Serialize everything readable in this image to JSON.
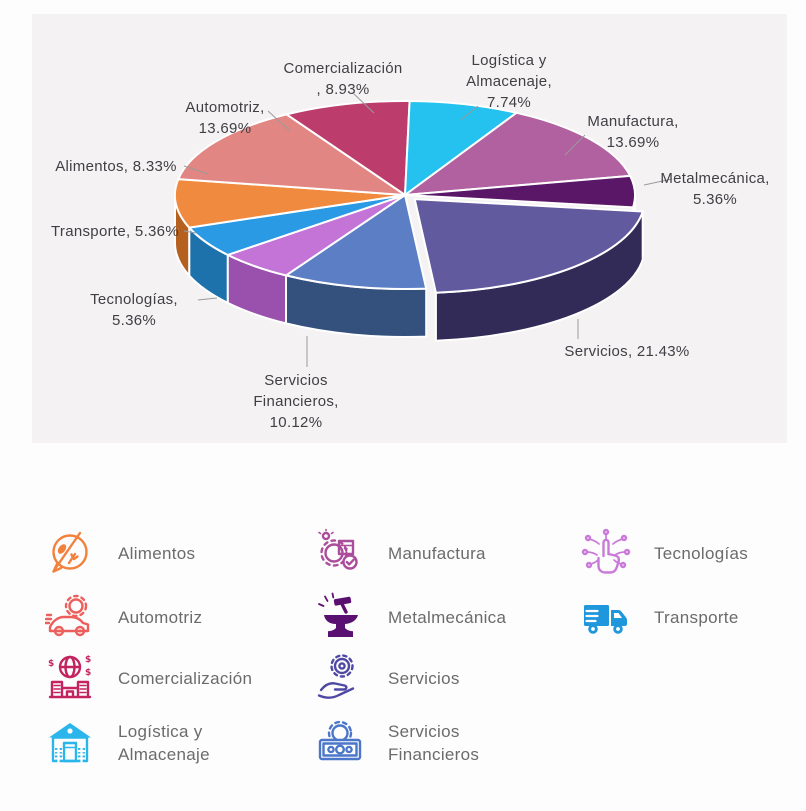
{
  "chart_data": {
    "type": "pie",
    "style": "3d-exploded",
    "title": "",
    "legend_position": "bottom-icons",
    "start_angle_deg": -31,
    "exploded_slice": "Servicios",
    "labels": [
      "Comercialización",
      "Logística y Almacenaje",
      "Manufactura",
      "Metalmecánica",
      "Servicios",
      "Servicios Financieros",
      "Tecnologías",
      "Transporte",
      "Alimentos",
      "Automotriz"
    ],
    "values": [
      8.93,
      7.74,
      13.69,
      5.36,
      21.43,
      10.12,
      5.36,
      5.36,
      8.33,
      13.69
    ],
    "series": [
      {
        "name": "Comercialización",
        "value": 8.93,
        "color": "#bc3c6c",
        "side_color": "#8c2a50",
        "display_lines": [
          "Comercialización",
          ", 8.93%"
        ]
      },
      {
        "name": "Logística y Almacenaje",
        "value": 7.74,
        "color": "#25c2ef",
        "side_color": "#1b90b4",
        "display_lines": [
          "Logística y",
          "Almacenaje,",
          "7.74%"
        ]
      },
      {
        "name": "Manufactura",
        "value": 13.69,
        "color": "#b1619f",
        "side_color": "#7d4370",
        "display_lines": [
          "Manufactura,",
          "13.69%"
        ]
      },
      {
        "name": "Metalmecánica",
        "value": 5.36,
        "color": "#5a1768",
        "side_color": "#3b0d49",
        "display_lines": [
          "Metalmecánica,",
          "5.36%"
        ]
      },
      {
        "name": "Servicios",
        "value": 21.43,
        "color": "#615a9f",
        "side_color": "#322b57",
        "display_lines": [
          "Servicios, 21.43%"
        ]
      },
      {
        "name": "Servicios Financieros",
        "value": 10.12,
        "color": "#5b7ec5",
        "side_color": "#33517c",
        "display_lines": [
          "Servicios",
          "Financieros,",
          "10.12%"
        ]
      },
      {
        "name": "Tecnologías",
        "value": 5.36,
        "color": "#c473d6",
        "side_color": "#9a50ad",
        "display_lines": [
          "Tecnologías,",
          "5.36%"
        ]
      },
      {
        "name": "Transporte",
        "value": 5.36,
        "color": "#2a9ae4",
        "side_color": "#1e72ab",
        "display_lines": [
          "Transporte, 5.36%"
        ]
      },
      {
        "name": "Alimentos",
        "value": 8.33,
        "color": "#f08a3e",
        "side_color": "#b5601f",
        "display_lines": [
          "Alimentos, 8.33%"
        ]
      },
      {
        "name": "Automotriz",
        "value": 13.69,
        "color": "#e18682",
        "side_color": "#a85f5c",
        "display_lines": [
          "Automotriz,",
          "13.69%"
        ]
      }
    ],
    "chart_background": "#f4f2f3"
  },
  "legend": {
    "items": [
      {
        "label": "Alimentos",
        "color": "#f2813c",
        "icon": "food-icon"
      },
      {
        "label": "Automotriz",
        "color": "#ed5f5d",
        "icon": "car-gear-icon"
      },
      {
        "label": "Comercialización",
        "color": "#c32460",
        "icon": "globe-commerce-icon"
      },
      {
        "label": "Logística y Almacenaje",
        "color": "#2ab6ea",
        "icon": "warehouse-icon"
      },
      {
        "label": "Manufactura",
        "color": "#ab4d9a",
        "icon": "gear-box-icon"
      },
      {
        "label": "Metalmecánica",
        "color": "#5a1070",
        "icon": "anvil-hammer-icon"
      },
      {
        "label": "Servicios",
        "color": "#4f49a5",
        "icon": "hand-gear-icon"
      },
      {
        "label": "Servicios Financieros",
        "color": "#4b76c9",
        "icon": "banknote-gear-icon"
      },
      {
        "label": "Tecnologías",
        "color": "#c97ad8",
        "icon": "touch-network-icon"
      },
      {
        "label": "Transporte",
        "color": "#1f97dd",
        "icon": "truck-icon"
      }
    ]
  }
}
